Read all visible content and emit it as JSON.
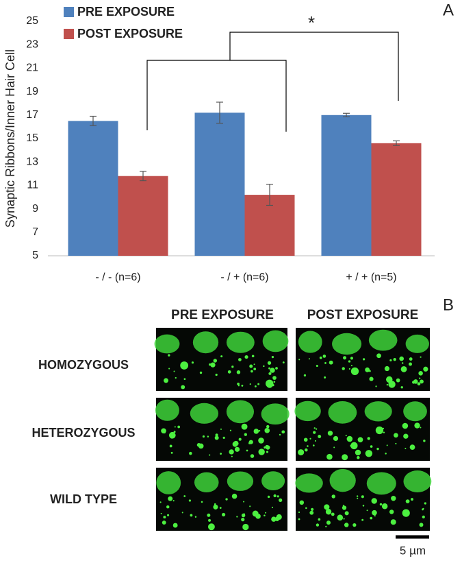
{
  "chart_data": {
    "type": "bar",
    "y_label": "Synaptic Ribbons/Inner Hair Cell",
    "categories": [
      "- / - (n=6)",
      "- / + (n=6)",
      "+ / + (n=5)"
    ],
    "series": [
      {
        "name": "PRE EXPOSURE",
        "color": "#4f81bd",
        "values": [
          16.5,
          17.2,
          17.0
        ],
        "errors": [
          0.4,
          0.9,
          0.15
        ]
      },
      {
        "name": "POST EXPOSURE",
        "color": "#c0504d",
        "values": [
          11.8,
          10.2,
          14.6
        ],
        "errors": [
          0.4,
          0.9,
          0.2
        ]
      }
    ],
    "ylim": [
      5,
      25
    ],
    "yticks": [
      5,
      7,
      9,
      11,
      13,
      15,
      17,
      19,
      21,
      23,
      25
    ],
    "grid": false,
    "legend": "top-left",
    "annotation": "*"
  },
  "panel_labels": [
    "A",
    "B"
  ],
  "images": {
    "columns": [
      "PRE EXPOSURE",
      "POST EXPOSURE"
    ],
    "rows": [
      "HOMOZYGOUS",
      "HETEROZYGOUS",
      "WILD TYPE"
    ],
    "scale_bar": "5 µm"
  }
}
